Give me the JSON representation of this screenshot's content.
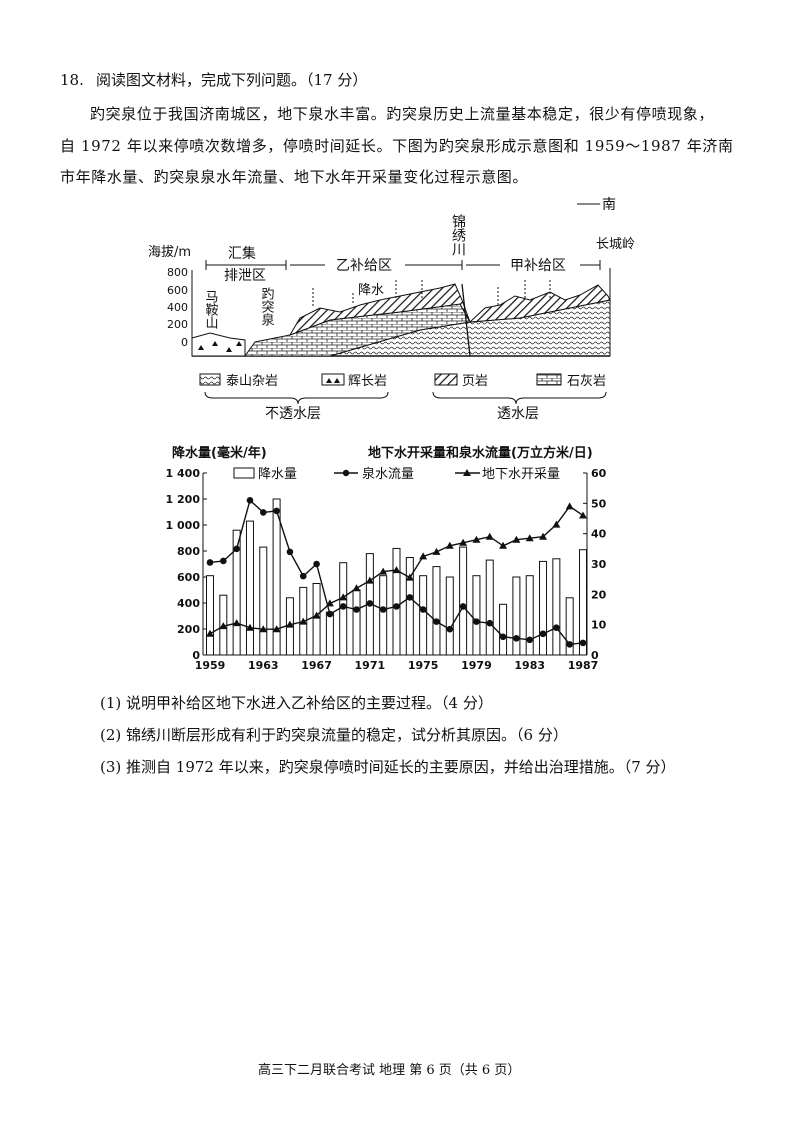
{
  "question": {
    "number": "18.",
    "title": "阅读图文材料，完成下列问题。（17 分）",
    "paragraph_lines": [
      "趵突泉位于我国济南城区，地下泉水丰富。趵突泉历史上流量基本稳定，很少有停喷现象，",
      "自 1972 年以来停喷次数增多，停喷时间延长。下图为趵突泉形成示意图和 1959～1987 年济南",
      "市年降水量、趵突泉泉水年流量、地下水年开采量变化过程示意图。"
    ],
    "sub_questions": [
      "(1)  说明甲补给区地下水进入乙补给区的主要过程。（4 分）",
      "(2)  锦绣川断层形成有利于趵突泉流量的稳定，试分析其原因。（6 分）",
      "(3)  推测自 1972 年以来，趵突泉停喷时间延长的主要原因，并给出治理措施。（7 分）"
    ]
  },
  "diagram": {
    "y_axis_label": "海拔/m",
    "y_ticks": [
      "800",
      "600",
      "400",
      "200",
      "0"
    ],
    "direction": "南",
    "zones": {
      "huiji": "汇集",
      "paixie": "排泄区",
      "yi": "乙补给区",
      "jia": "甲补给区"
    },
    "places": {
      "maanshan": "马鞍山",
      "baotuquan": "趵突泉",
      "jinxiuchuan": "锦绣川",
      "changchengling": "长城岭",
      "precip": "降水"
    },
    "legend": [
      {
        "label": "泰山杂岩"
      },
      {
        "label": "辉长岩"
      },
      {
        "label": "页岩"
      },
      {
        "label": "石灰岩"
      }
    ],
    "groups": {
      "impermeable": "不透水层",
      "permeable": "透水层"
    }
  },
  "chart_data": {
    "type": "bar+line",
    "left_axis_title": "降水量(毫米/年)",
    "right_axis_title": "地下水开采量和泉水流量(万立方米/日)",
    "left_ylim": [
      0,
      1400
    ],
    "left_ticks": [
      "0",
      "200",
      "400",
      "600",
      "800",
      "1 000",
      "1 200",
      "1 400"
    ],
    "right_ylim": [
      0,
      60
    ],
    "right_ticks": [
      "0",
      "10",
      "20",
      "30",
      "40",
      "50",
      "60"
    ],
    "x_ticks": [
      "1959",
      "1963",
      "1967",
      "1971",
      "1975",
      "1979",
      "1983",
      "1987"
    ],
    "x": [
      1959,
      1960,
      1961,
      1962,
      1963,
      1964,
      1965,
      1966,
      1967,
      1968,
      1969,
      1970,
      1971,
      1972,
      1973,
      1974,
      1975,
      1976,
      1977,
      1978,
      1979,
      1980,
      1981,
      1982,
      1983,
      1984,
      1985,
      1986,
      1987
    ],
    "legend_position": "top",
    "series": [
      {
        "name": "降水量",
        "type": "bar",
        "axis": "left",
        "values": [
          610,
          460,
          960,
          1030,
          830,
          1200,
          440,
          520,
          550,
          330,
          710,
          500,
          780,
          610,
          820,
          750,
          610,
          680,
          600,
          830,
          610,
          730,
          390,
          600,
          610,
          720,
          740,
          440,
          810
        ]
      },
      {
        "name": "泉水流量",
        "type": "line",
        "marker": "circle",
        "axis": "right",
        "values": [
          30.5,
          31,
          35,
          51,
          47,
          47.5,
          34,
          26,
          30,
          13.5,
          16,
          15,
          17,
          15,
          16,
          19,
          15,
          11,
          8.5,
          16,
          11,
          10.5,
          6,
          5.5,
          5,
          7,
          9,
          3.5,
          4
        ]
      },
      {
        "name": "地下水开采量",
        "type": "line",
        "marker": "triangle",
        "axis": "right",
        "values": [
          7,
          9.5,
          10.5,
          9,
          8.5,
          8.5,
          10,
          11,
          13,
          17,
          19,
          22,
          24.5,
          27.5,
          28,
          25.5,
          32.5,
          34,
          36,
          37,
          38,
          39,
          36,
          38,
          38.5,
          39,
          43,
          49,
          46
        ]
      }
    ]
  },
  "footer": "高三下二月联合考试 地理 第 6 页（共 6 页）"
}
